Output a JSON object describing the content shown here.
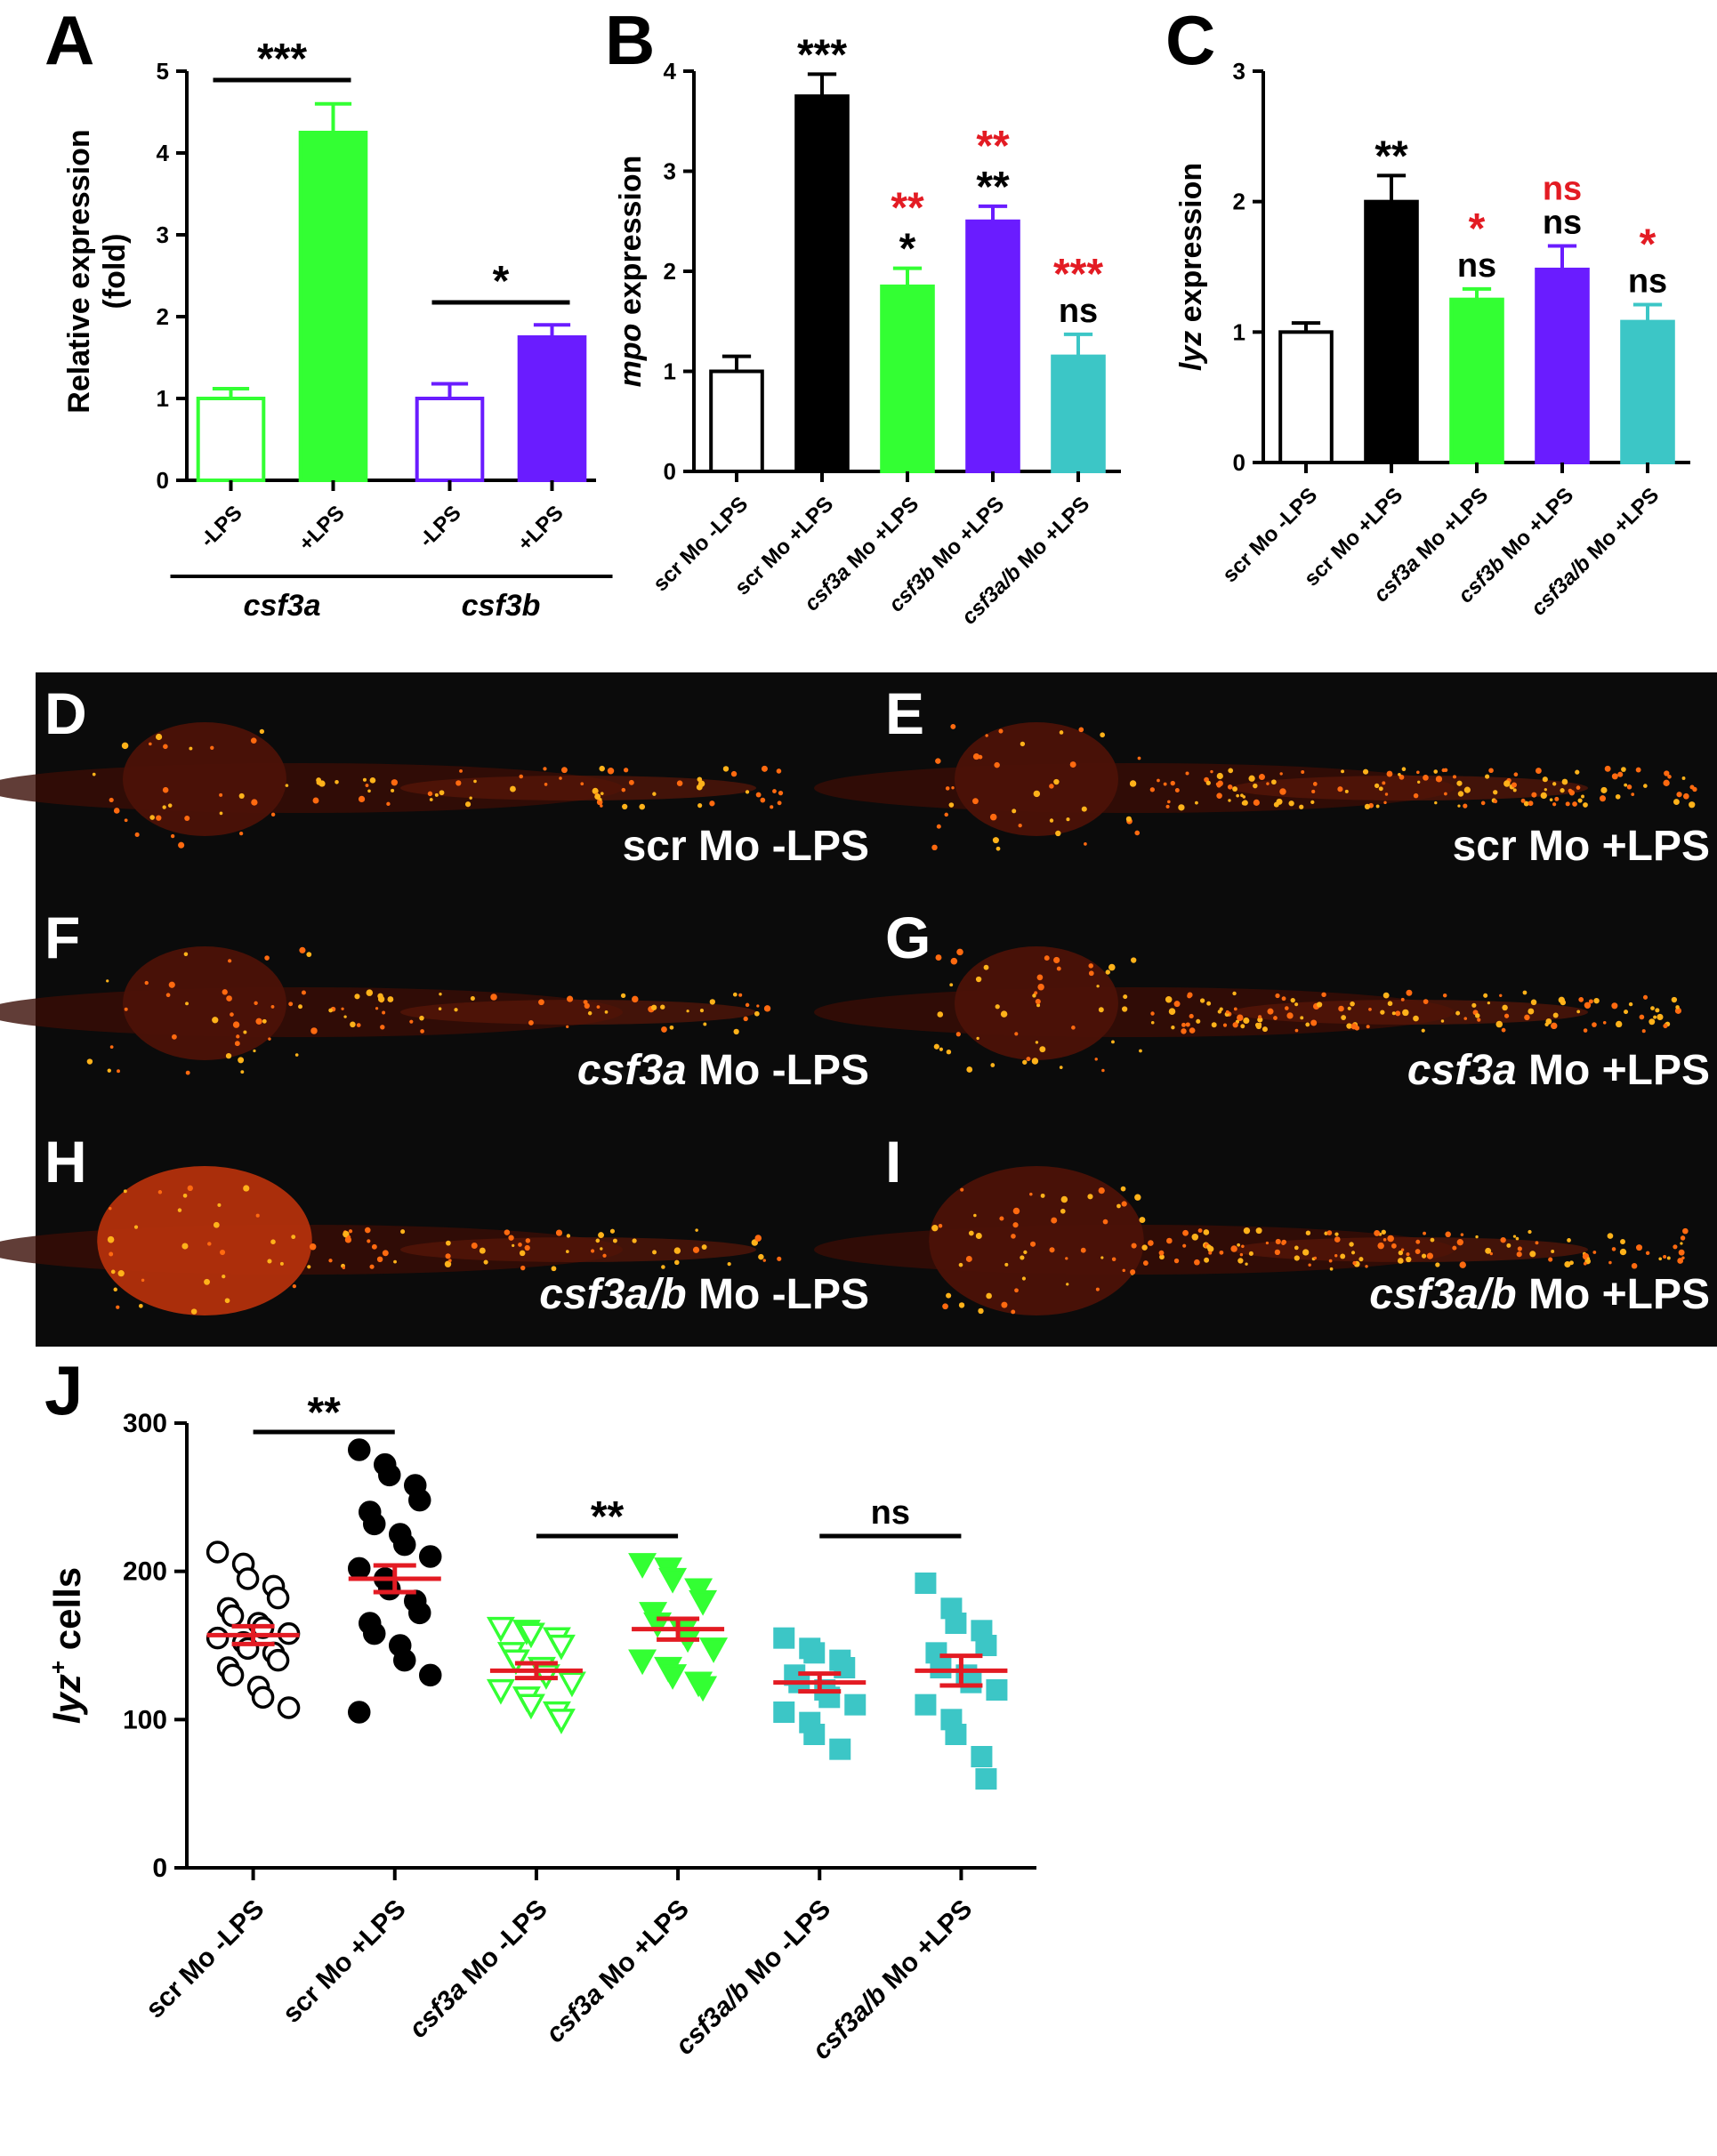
{
  "panel_letters": {
    "A": "A",
    "B": "B",
    "C": "C",
    "D": "D",
    "E": "E",
    "F": "F",
    "G": "G",
    "H": "H",
    "I": "I",
    "J": "J"
  },
  "colors": {
    "green": "#33ff33",
    "purple": "#6a1cff",
    "teal": "#3cc6c6",
    "black": "#000000",
    "red": "#e31b23",
    "white": "#ffffff"
  },
  "chart_data": [
    {
      "panel": "A",
      "type": "bar",
      "ylabel": "Relative expression (fold)",
      "ylabel_lines": [
        "Relative expression",
        "(fold)"
      ],
      "ylim": [
        0,
        5
      ],
      "yticks": [
        "0",
        "1",
        "2",
        "3",
        "4",
        "5"
      ],
      "categories": [
        "-LPS",
        "+LPS",
        "-LPS",
        "+LPS"
      ],
      "groups": [
        "csf3a",
        "csf3b"
      ],
      "values": [
        1.0,
        4.25,
        1.0,
        1.75
      ],
      "errors": [
        0.12,
        0.35,
        0.18,
        0.15
      ],
      "fill": [
        "#ffffff",
        "#33ff33",
        "#ffffff",
        "#6a1cff"
      ],
      "stroke": [
        "#33ff33",
        "#33ff33",
        "#6a1cff",
        "#6a1cff"
      ],
      "significance": [
        {
          "label": "***",
          "between": [
            0,
            1
          ]
        },
        {
          "label": "*",
          "between": [
            2,
            3
          ]
        }
      ]
    },
    {
      "panel": "B",
      "type": "bar",
      "ylabel_italic": "mpo",
      "ylabel_rest": "expression",
      "ylim": [
        0,
        4
      ],
      "yticks": [
        "0",
        "1",
        "2",
        "3",
        "4"
      ],
      "categories": [
        {
          "it": "",
          "rest": "scr Mo -LPS"
        },
        {
          "it": "",
          "rest": "scr Mo +LPS"
        },
        {
          "it": "csf3a",
          "rest": " Mo +LPS"
        },
        {
          "it": "csf3b",
          "rest": " Mo +LPS"
        },
        {
          "it": "csf3a/b",
          "rest": " Mo +LPS"
        }
      ],
      "values": [
        1.0,
        3.75,
        1.85,
        2.5,
        1.15
      ],
      "errors": [
        0.15,
        0.22,
        0.18,
        0.15,
        0.22
      ],
      "fill": [
        "#ffffff",
        "#000000",
        "#33ff33",
        "#6a1cff",
        "#3cc6c6"
      ],
      "stroke": [
        "#000000",
        "#000000",
        "#33ff33",
        "#6a1cff",
        "#3cc6c6"
      ],
      "sig_black": [
        "",
        "***",
        "*",
        "**",
        "ns"
      ],
      "sig_red": [
        "",
        "",
        "**",
        "**",
        "***"
      ]
    },
    {
      "panel": "C",
      "type": "bar",
      "ylabel_italic": "lyz",
      "ylabel_rest": "expression",
      "ylim": [
        0,
        3
      ],
      "yticks": [
        "0",
        "1",
        "2",
        "3"
      ],
      "categories": [
        {
          "it": "",
          "rest": "scr Mo -LPS"
        },
        {
          "it": "",
          "rest": "scr Mo +LPS"
        },
        {
          "it": "csf3a",
          "rest": " Mo +LPS"
        },
        {
          "it": "csf3b",
          "rest": " Mo +LPS"
        },
        {
          "it": "csf3a/b",
          "rest": " Mo +LPS"
        }
      ],
      "values": [
        1.0,
        2.0,
        1.25,
        1.48,
        1.08
      ],
      "errors": [
        0.07,
        0.2,
        0.08,
        0.18,
        0.13
      ],
      "fill": [
        "#ffffff",
        "#000000",
        "#33ff33",
        "#6a1cff",
        "#3cc6c6"
      ],
      "stroke": [
        "#000000",
        "#000000",
        "#33ff33",
        "#6a1cff",
        "#3cc6c6"
      ],
      "sig_black": [
        "",
        "**",
        "ns",
        "ns",
        "ns"
      ],
      "sig_red": [
        "",
        "",
        "*",
        "ns",
        "*"
      ]
    },
    {
      "panel": "J",
      "type": "scatter",
      "ylabel_italic": "lyz",
      "ylabel_sup": "+",
      "ylabel_rest": " cells",
      "ylim": [
        0,
        300
      ],
      "yticks": [
        "0",
        "100",
        "200",
        "300"
      ],
      "categories": [
        {
          "it": "",
          "rest": "scr Mo -LPS"
        },
        {
          "it": "",
          "rest": "scr Mo +LPS"
        },
        {
          "it": "csf3a",
          "rest": " Mo -LPS"
        },
        {
          "it": "csf3a",
          "rest": " Mo +LPS"
        },
        {
          "it": "csf3a/b",
          "rest": " Mo -LPS"
        },
        {
          "it": "csf3a/b",
          "rest": " Mo +LPS"
        }
      ],
      "markers": [
        "circle-open",
        "circle",
        "triangle-open",
        "triangle",
        "square",
        "square"
      ],
      "marker_colors": [
        "#000000",
        "#000000",
        "#33ff33",
        "#33ff33",
        "#3cc6c6",
        "#3cc6c6"
      ],
      "means": [
        157,
        195,
        133,
        161,
        125,
        133
      ],
      "sems": [
        6,
        9,
        5,
        7,
        6,
        10
      ],
      "points": [
        [
          213,
          205,
          195,
          190,
          182,
          175,
          170,
          165,
          162,
          158,
          155,
          152,
          148,
          145,
          140,
          135,
          130,
          122,
          115,
          108
        ],
        [
          282,
          272,
          265,
          258,
          248,
          240,
          232,
          225,
          218,
          210,
          202,
          195,
          188,
          180,
          172,
          165,
          158,
          150,
          140,
          130,
          105
        ],
        [
          162,
          160,
          158,
          155,
          150,
          145,
          140,
          135,
          130,
          125,
          120,
          115,
          110,
          105,
          100
        ],
        [
          205,
          202,
          195,
          188,
          180,
          172,
          165,
          160,
          155,
          148,
          140,
          135,
          130,
          125,
          122
        ],
        [
          155,
          148,
          145,
          140,
          135,
          130,
          125,
          120,
          115,
          110,
          105,
          98,
          90,
          80
        ],
        [
          192,
          175,
          165,
          160,
          150,
          145,
          135,
          130,
          125,
          120,
          110,
          100,
          90,
          75,
          60
        ]
      ],
      "significance": [
        {
          "label": "**",
          "between": [
            0,
            1
          ]
        },
        {
          "label": "**",
          "between": [
            2,
            3
          ]
        },
        {
          "label": "ns",
          "between": [
            4,
            5
          ]
        }
      ]
    }
  ],
  "micrographs": [
    {
      "letter": "D",
      "label_it": "",
      "label_rest": "scr Mo -LPS"
    },
    {
      "letter": "E",
      "label_it": "",
      "label_rest": "scr Mo +LPS"
    },
    {
      "letter": "F",
      "label_it": "csf3a",
      "label_rest": " Mo -LPS"
    },
    {
      "letter": "G",
      "label_it": "csf3a",
      "label_rest": " Mo +LPS"
    },
    {
      "letter": "H",
      "label_it": "csf3a/b",
      "label_rest": " Mo -LPS"
    },
    {
      "letter": "I",
      "label_it": "csf3a/b",
      "label_rest": " Mo +LPS"
    }
  ]
}
